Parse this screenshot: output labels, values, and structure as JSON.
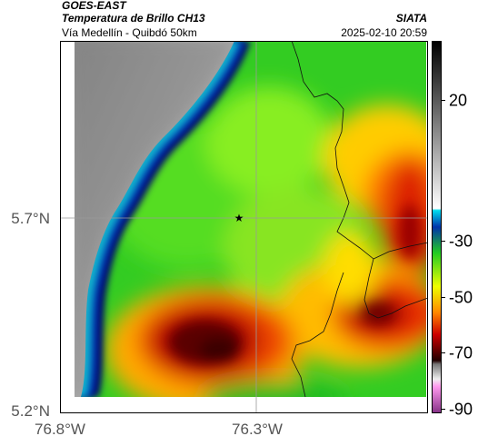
{
  "header": {
    "satellite": "GOES-EAST",
    "product": "Temperatura de Brillo CH13",
    "organization": "SIATA",
    "region": "Vía Medellín - Quibdó 50km",
    "timestamp": "2025-02-10 20:59"
  },
  "map": {
    "lat_labels": [
      "5.7°N",
      "5.2°N"
    ],
    "lon_labels": [
      "76.8°W",
      "76.3°W"
    ],
    "marker_icon": "star-icon",
    "marker_glyph": "★"
  },
  "colorbar": {
    "ticks": [
      "20",
      "-30",
      "-50",
      "-70",
      "-90"
    ]
  }
}
